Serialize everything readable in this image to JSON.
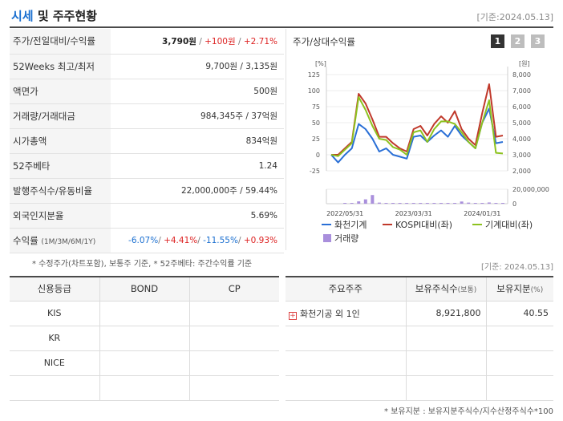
{
  "header": {
    "title_accent": "시세",
    "title_rest": " 및 주주현황",
    "date": "[기준:2024.05.13]"
  },
  "info": {
    "rows": [
      {
        "label": "주가/전일대비/수익률"
      },
      {
        "label": "52Weeks 최고/최저",
        "value": "9,700원 / 3,135원"
      },
      {
        "label": "액면가",
        "value": "500원"
      },
      {
        "label": "거래량/거래대금",
        "value": "984,345주 / 37억원"
      },
      {
        "label": "시가총액",
        "value": "834억원"
      },
      {
        "label": "52주베타",
        "value": "1.24"
      },
      {
        "label": "발행주식수/유동비율",
        "value": "22,000,000주 / 59.44%"
      },
      {
        "label": "외국인지분율",
        "value": "5.69%"
      },
      {
        "label": "수익률",
        "label_sub": "(1M/3M/6M/1Y)"
      }
    ],
    "price": "3,790원",
    "change": "+100원",
    "change_rate": "+2.71%",
    "sep": " / ",
    "returns": [
      "-6.07%",
      "+4.41%",
      "-11.55%",
      "+0.93%"
    ],
    "returns_sep": "/ "
  },
  "chart_panel": {
    "title": "주가/상대수익률",
    "pages": [
      "1",
      "2",
      "3"
    ],
    "active_page": 0
  },
  "chart_data": {
    "type": "line",
    "left_axis_unit": "[%]",
    "right_axis_unit": "[원]",
    "left_ticks": [
      "125",
      "100",
      "75",
      "50",
      "25",
      "0",
      "-25"
    ],
    "right_ticks": [
      "8,000",
      "7,000",
      "6,000",
      "5,000",
      "4,000",
      "3,000",
      "2,000"
    ],
    "left_ylim": [
      -25,
      125
    ],
    "right_ylim": [
      2000,
      8000
    ],
    "volume_ticks": [
      "20,000,000",
      "0"
    ],
    "volume_ylim": [
      0,
      20000000
    ],
    "x_ticks": [
      "2022/05/31",
      "2023/03/31",
      "2024/01/31"
    ],
    "x_tick_index": [
      2,
      12,
      22
    ],
    "series": [
      {
        "name": "화천기계",
        "axis": "left",
        "color": "#2a6fd6",
        "values": [
          0,
          -12,
          0,
          10,
          48,
          40,
          25,
          5,
          10,
          0,
          -3,
          -6,
          28,
          30,
          20,
          30,
          38,
          28,
          45,
          30,
          20,
          10,
          50,
          72,
          18,
          20
        ]
      },
      {
        "name": "KOSPI대비(좌)",
        "axis": "left",
        "color": "#c0392b",
        "values": [
          0,
          0,
          10,
          20,
          95,
          80,
          55,
          28,
          28,
          18,
          10,
          5,
          40,
          45,
          30,
          48,
          60,
          50,
          68,
          40,
          25,
          15,
          65,
          110,
          28,
          30
        ]
      },
      {
        "name": "기계대비(좌)",
        "axis": "left",
        "color": "#8dc21f",
        "values": [
          0,
          -2,
          8,
          18,
          90,
          70,
          45,
          25,
          23,
          12,
          8,
          0,
          35,
          38,
          20,
          40,
          52,
          52,
          48,
          35,
          20,
          10,
          50,
          85,
          3,
          2
        ]
      }
    ],
    "volume": {
      "name": "거래량",
      "color": "#a98fdc",
      "values": [
        0,
        0,
        200000,
        100000,
        3200000,
        6000000,
        12000000,
        1500000,
        200000,
        100000,
        200000,
        500000,
        800000,
        600000,
        100000,
        100000,
        900000,
        200000,
        200000,
        3000000,
        1500000,
        200000,
        1000000,
        1700000,
        400000,
        300000
      ]
    }
  },
  "notes": {
    "left": "* 수정주가(차트포함), 보통주 기준, * 52주베타: 주간수익률 기준",
    "right": "[기준: 2024.05.13]",
    "footnote": "* 보유지분 : 보유지분주식수/지수산정주식수*100"
  },
  "credit": {
    "headers": [
      "신용등급",
      "BOND",
      "CP"
    ],
    "rows": [
      [
        "KIS",
        "",
        ""
      ],
      [
        "KR",
        "",
        ""
      ],
      [
        "NICE",
        "",
        ""
      ],
      [
        "",
        "",
        ""
      ]
    ]
  },
  "holders": {
    "header_name": "주요주주",
    "header_shares": "보유주식수",
    "header_shares_unit": "(보통)",
    "header_ratio": "보유지분",
    "header_ratio_unit": "(%)",
    "expand_icon": "+",
    "rows": [
      {
        "name": "화천기공 외 1인",
        "shares": "8,921,800",
        "ratio": "40.55"
      }
    ]
  }
}
